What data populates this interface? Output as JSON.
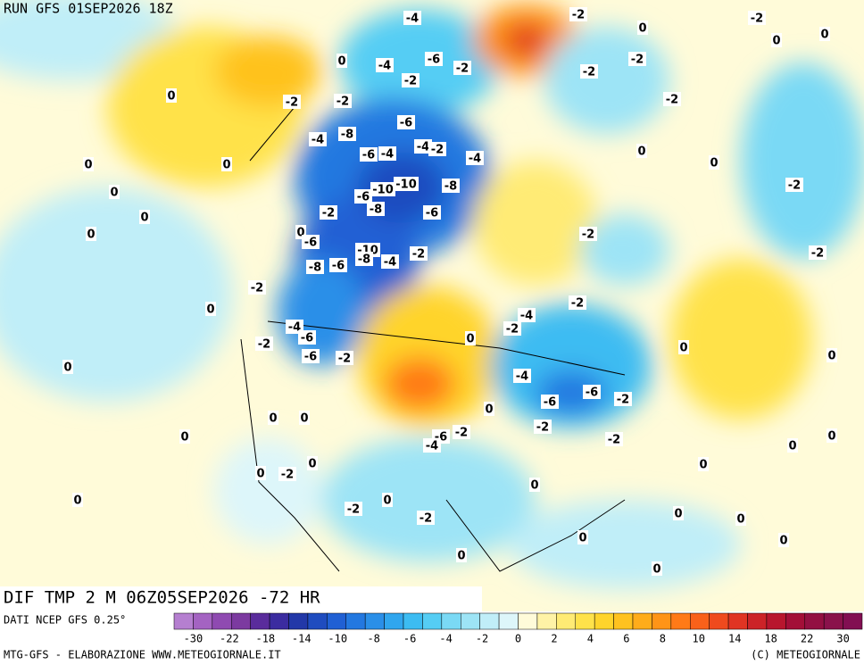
{
  "header": {
    "run": "RUN GFS 01SEP2026 18Z"
  },
  "map": {
    "field": "DIF TMP 2 M 06Z05SEP2026 -72 HR",
    "labels": [
      -4,
      -2,
      -2,
      0,
      0,
      0,
      -6,
      -4,
      0,
      -2,
      -2,
      -2,
      -2,
      0,
      -2,
      -2,
      -2,
      -6,
      -8,
      -4,
      -4,
      -2,
      -6,
      -4,
      -4,
      0,
      0,
      0,
      0,
      -10,
      -10,
      -8,
      -6,
      -2,
      0,
      -8,
      -2,
      -6,
      0,
      0,
      -6,
      0,
      -2,
      -10,
      -8,
      -6,
      -4,
      -2,
      -8,
      -2,
      -2,
      0,
      -2,
      -4,
      -2,
      -4,
      -6,
      0,
      -2,
      0,
      -6,
      -2,
      0,
      0,
      -4,
      -6,
      -6,
      -2,
      0,
      -2,
      0,
      0,
      0,
      -6,
      -2,
      -4,
      -2,
      0,
      0,
      0,
      -2,
      0,
      0,
      0,
      0,
      0,
      -2,
      -2,
      0,
      0,
      0,
      0,
      0,
      0
    ]
  },
  "legend": {
    "source": "DATI NCEP GFS 0.25°",
    "colors": [
      "#b57fd0",
      "#a463c2",
      "#8f4ab1",
      "#7c3aa0",
      "#5a2c9c",
      "#3b2ca0",
      "#2238a8",
      "#1f4cbf",
      "#2060d4",
      "#2378e0",
      "#2a8fe8",
      "#30a6ee",
      "#3cbcf2",
      "#55cdf4",
      "#7ad9f5",
      "#9de4f6",
      "#c0eef8",
      "#ddf6fa",
      "#fffbd9",
      "#fff3a6",
      "#ffeb74",
      "#ffe24a",
      "#ffd42b",
      "#ffc21f",
      "#ffac1a",
      "#ff9417",
      "#ff7a17",
      "#f9611a",
      "#ef4a1e",
      "#e03423",
      "#cc2328",
      "#b8162e",
      "#a30f38",
      "#931042",
      "#8a124b",
      "#820f52"
    ],
    "ticks": [
      -30,
      -22,
      -18,
      -14,
      -10,
      -8,
      -6,
      -4,
      -2,
      0,
      2,
      4,
      6,
      8,
      10,
      14,
      18,
      22,
      30
    ]
  },
  "footer": {
    "credit": "MTG-GFS - ELABORAZIONE WWW.METEOGIORNALE.IT",
    "copyright": "(C) METEOGIORNALE"
  }
}
